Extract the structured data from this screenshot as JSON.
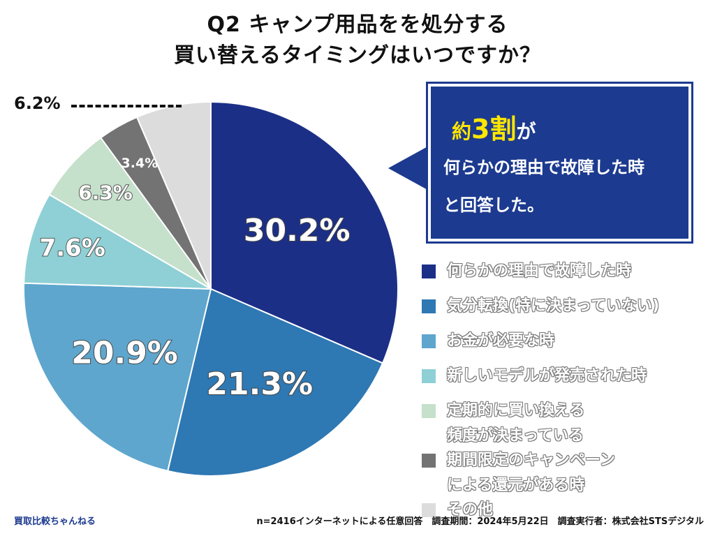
{
  "title": {
    "line1": "Q2 キャンプ用品をを処分する",
    "line2": "買い替えるタイミングはいつですか？"
  },
  "callout": {
    "prefix": "約",
    "highlight": "3割",
    "suffix": "が",
    "line2": "何らかの理由で故障した時",
    "line3": "と回答した。"
  },
  "chart_data": {
    "type": "pie",
    "title": "Q2 キャンプ用品をを処分する 買い替えるタイミングはいつですか？",
    "start_angle_deg": 0,
    "direction": "clockwise",
    "slices": [
      {
        "label": "何らかの理由で故障した時",
        "value": 30.2,
        "display": "30.2%",
        "color": "#1c2f87"
      },
      {
        "label": "気分転換(特に決まっていない)",
        "value": 21.3,
        "display": "21.3%",
        "color": "#2e78b3"
      },
      {
        "label": "お金が必要な時",
        "value": 20.9,
        "display": "20.9%",
        "color": "#5ea6cd"
      },
      {
        "label": "新しいモデルが発売された時",
        "value": 7.6,
        "display": "7.6%",
        "color": "#8ed0d5"
      },
      {
        "label": "定期的に買い換える頻度が決まっている",
        "value": 6.3,
        "display": "6.3%",
        "color": "#c5e0cb"
      },
      {
        "label": "期間限定のキャンペーンによる還元がある時",
        "value": 3.4,
        "display": "3.4%",
        "color": "#737373"
      },
      {
        "label": "その他",
        "value": 6.2,
        "display": "6.2%",
        "color": "#dcdcdc"
      }
    ]
  },
  "legend": [
    {
      "lines": [
        "何らかの理由で故障した時"
      ],
      "color": "#1c2f87"
    },
    {
      "lines": [
        "気分転換(特に決まっていない)"
      ],
      "color": "#2e78b3"
    },
    {
      "lines": [
        "お金が必要な時"
      ],
      "color": "#5ea6cd"
    },
    {
      "lines": [
        "新しいモデルが発売された時"
      ],
      "color": "#8ed0d5"
    },
    {
      "lines": [
        "定期的に買い換える",
        "頻度が決まっている"
      ],
      "color": "#c5e0cb"
    },
    {
      "lines": [
        "期間限定のキャンペーン",
        "による還元がある時"
      ],
      "color": "#737373"
    },
    {
      "lines": [
        "その他"
      ],
      "color": "#dcdcdc"
    }
  ],
  "footer": {
    "brand": "買取比較ちゃんねる",
    "note": "n=2416インターネットによる任意回答　調査期間：2024年5月22日　調査実行者：株式会社STSデジタル"
  }
}
